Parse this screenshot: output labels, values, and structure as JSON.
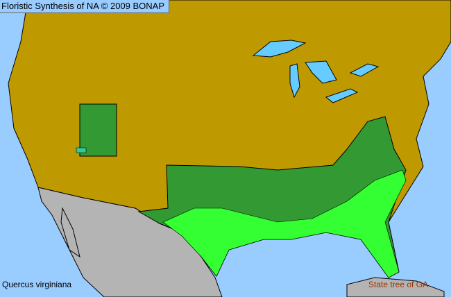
{
  "header": {
    "title": "Floristic Synthesis of NA © 2009 BONAP"
  },
  "species": {
    "name": "Quercus virginiana"
  },
  "note": {
    "text": "State tree of GA"
  },
  "colors": {
    "ocean": "#99ccff",
    "absent": "#bf9900",
    "present_state": "#339933",
    "present_county": "#33ff33",
    "rare": "#33cc99",
    "mexico": "#b4b4b4",
    "lakes": "#66ccff"
  }
}
